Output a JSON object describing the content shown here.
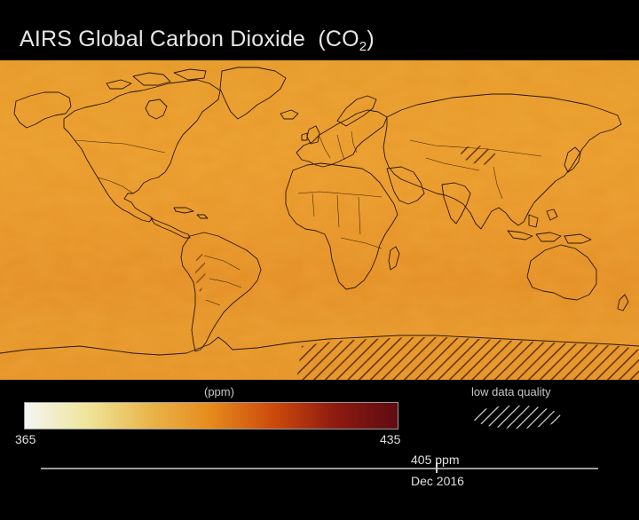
{
  "title": {
    "text": "AIRS Global Carbon Dioxide",
    "formula_prefix": "(CO",
    "formula_sub": "2",
    "formula_suffix": ")"
  },
  "legend": {
    "unit": "(ppm)",
    "min": "365",
    "max": "435",
    "colors": [
      "#f4f4f2",
      "#efe59a",
      "#e9b64c",
      "#e68a1c",
      "#cc4a0c",
      "#8e1a10",
      "#5e0c12"
    ],
    "low_quality_label": "low data quality"
  },
  "map": {
    "fill_color": "#e89a2c",
    "outline_color": "#2a1608"
  },
  "timeline": {
    "value": "405 ppm",
    "date": "Dec 2016"
  }
}
